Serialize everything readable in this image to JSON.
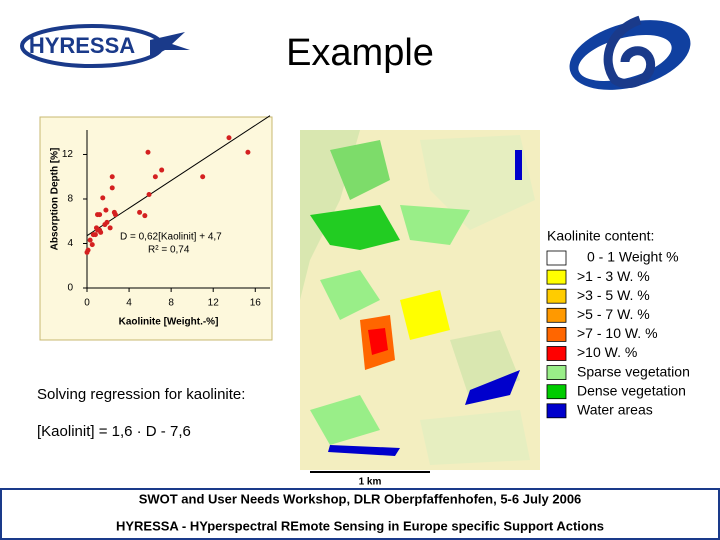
{
  "header": {
    "title": "Example",
    "logo_text": "HYRESSA"
  },
  "chart_data": {
    "type": "scatter",
    "x": [
      13.5,
      15.3,
      5.8,
      7.1,
      6.5,
      11.0,
      2.4,
      5.9,
      2.4,
      1.5,
      1.8,
      1.0,
      1.2,
      2.6,
      2.7,
      5.5,
      5.0,
      1.9,
      1.0,
      0.6,
      0.3,
      0.8,
      1.2,
      1.7,
      0.5,
      0.1,
      0.0,
      0.9,
      1.3,
      2.2
    ],
    "values": [
      13.5,
      12.2,
      12.2,
      10.6,
      10.0,
      10.0,
      10.0,
      8.4,
      9.0,
      8.1,
      7.0,
      6.6,
      6.6,
      6.8,
      6.6,
      6.5,
      6.8,
      5.9,
      5.2,
      4.8,
      4.3,
      4.8,
      5.2,
      5.7,
      3.9,
      3.4,
      3.2,
      5.4,
      5.0,
      5.4
    ],
    "color": "#d42020",
    "xlim": [
      0,
      17.4
    ],
    "ylim": [
      0,
      14.2
    ],
    "xticks": [
      0,
      4,
      8,
      12,
      16
    ],
    "yticks": [
      0,
      4,
      8,
      12
    ],
    "xlabel": "Kaolinite [Weight.-%]",
    "ylabel": "Absorption Depth [%]",
    "annotations": [
      "D = 0,62[Kaolinit] + 4,7",
      "R² = 0,74"
    ],
    "trendline": {
      "slope": 0.62,
      "intercept": 4.7,
      "x": [
        0,
        17.4
      ]
    }
  },
  "text": {
    "regression_heading": "Solving regression for kaolinite:",
    "regression_formula": "[Kaolinit] = 1,6 · D - 7,6"
  },
  "legend": {
    "title": "Kaolinite content:",
    "items": [
      {
        "label": "0 - 1 Weight %",
        "color": "#ffffff"
      },
      {
        "label": ">1 - 3 W. %",
        "color": "#ffff00"
      },
      {
        "label": ">3 - 5 W. %",
        "color": "#ffcc00"
      },
      {
        "label": ">5 - 7 W. %",
        "color": "#ff9900"
      },
      {
        "label": ">7 - 10 W. %",
        "color": "#ff6600"
      },
      {
        "label": ">10 W. %",
        "color": "#ff0000"
      },
      {
        "label": "Sparse vegetation",
        "color": "#99ee88"
      },
      {
        "label": "Dense vegetation",
        "color": "#00cc00"
      },
      {
        "label": "Water areas",
        "color": "#0000cc"
      }
    ]
  },
  "scale_bar": {
    "label": "1 km"
  },
  "footer": {
    "lines": [
      "SWOT and User Needs Workshop, DLR Oberpfaffenhofen,  5-6 July 2006",
      "HYRESSA - HYperspectral REmote Sensing in Europe specific Support Actions"
    ]
  }
}
